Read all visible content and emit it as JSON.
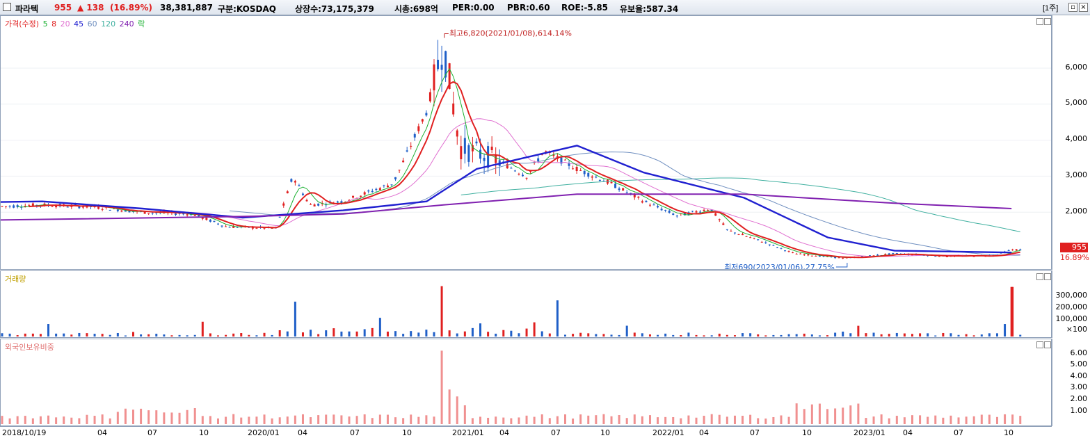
{
  "header": {
    "name": "파라텍",
    "price": "955",
    "change": "▲ 138",
    "change_pct": "(16.89%)",
    "volume": "38,381,887",
    "market": "구분:KOSDAQ",
    "shares": "상장수:73,175,379",
    "mcap": "시총:698억",
    "per": "PER:0.00",
    "pbr": "PBR:0.60",
    "roe": "ROE:-5.85",
    "float": "유보율:587.34",
    "period_button": "[1주]",
    "restore_icon": "restore-window-icon",
    "close_icon": "close-window-icon"
  },
  "colors": {
    "up": "#e02020",
    "down": "#1f5fc8",
    "ma5": "#19b030",
    "ma8": "#e02020",
    "ma20": "#e070d0",
    "ma45": "#2020d0",
    "ma60": "#6f8fc0",
    "ma120": "#40b0a0",
    "ma240": "#8020b0",
    "foreign": "#f09090"
  },
  "price_panel": {
    "legend_label": "가격(수정)",
    "ma_labels": [
      "5",
      "8",
      "20",
      "45",
      "60",
      "120",
      "240",
      "락"
    ],
    "high_annotation": "최고6,820(2021/01/08),614.14%",
    "low_annotation": "최저690(2023/01/06),27.75%",
    "y_ticks": [
      "6,000",
      "5,000",
      "4,000",
      "3,000",
      "2,000"
    ],
    "last_price": "955",
    "last_pct": "16.89%"
  },
  "volume_panel": {
    "legend_label": "거래량",
    "y_ticks": [
      "300,000",
      "200,000",
      "100,000",
      "×100"
    ]
  },
  "foreign_panel": {
    "legend_label": "외국인보유비중",
    "y_ticks": [
      "6.00",
      "5.00",
      "4.00",
      "3.00",
      "2.00",
      "1.00"
    ]
  },
  "x_axis": {
    "labels": [
      "2018/10/19",
      "04",
      "07",
      "10",
      "2020/01",
      "04",
      "07",
      "10",
      "2021/01",
      "04",
      "07",
      "10",
      "2022/01",
      "04",
      "07",
      "10",
      "2023/01",
      "04",
      "07",
      "10"
    ]
  },
  "chart_data": {
    "type": "candlestick",
    "interval": "weekly",
    "x_range": [
      "2018/10/19",
      "2023/11"
    ],
    "price_ylim": [
      500,
      7000
    ],
    "volume_ylim": [
      0,
      420000
    ],
    "foreign_ylim": [
      0,
      7
    ],
    "high_point": {
      "date": "2021/01/08",
      "value": 6820
    },
    "low_point": {
      "date": "2023/01/06",
      "value": 690
    },
    "close_path": [
      {
        "date": "2018/10",
        "close": 2150
      },
      {
        "date": "2019/01",
        "close": 2200
      },
      {
        "date": "2019/04",
        "close": 2150
      },
      {
        "date": "2019/07",
        "close": 2000
      },
      {
        "date": "2019/10",
        "close": 1950
      },
      {
        "date": "2019/12",
        "close": 1600
      },
      {
        "date": "2020/03",
        "close": 1550
      },
      {
        "date": "2020/04",
        "close": 3000
      },
      {
        "date": "2020/05",
        "close": 2200
      },
      {
        "date": "2020/07",
        "close": 2300
      },
      {
        "date": "2020/10",
        "close": 2800
      },
      {
        "date": "2020/12",
        "close": 4800
      },
      {
        "date": "2021/01",
        "close": 6700
      },
      {
        "date": "2021/02",
        "close": 3800
      },
      {
        "date": "2021/04",
        "close": 3500
      },
      {
        "date": "2021/06",
        "close": 3000
      },
      {
        "date": "2021/07",
        "close": 3700
      },
      {
        "date": "2021/09",
        "close": 3200
      },
      {
        "date": "2021/11",
        "close": 2800
      },
      {
        "date": "2022/01",
        "close": 2300
      },
      {
        "date": "2022/03",
        "close": 1900
      },
      {
        "date": "2022/05",
        "close": 2100
      },
      {
        "date": "2022/06",
        "close": 1500
      },
      {
        "date": "2022/08",
        "close": 1200
      },
      {
        "date": "2022/10",
        "close": 850
      },
      {
        "date": "2023/01",
        "close": 720
      },
      {
        "date": "2023/04",
        "close": 850
      },
      {
        "date": "2023/07",
        "close": 780
      },
      {
        "date": "2023/10",
        "close": 800
      },
      {
        "date": "2023/11",
        "close": 955
      }
    ],
    "ma45_path": [
      {
        "date": "2018/10",
        "value": 2280
      },
      {
        "date": "2019/01",
        "value": 2300
      },
      {
        "date": "2019/07",
        "value": 2100
      },
      {
        "date": "2020/01",
        "value": 1850
      },
      {
        "date": "2020/07",
        "value": 2050
      },
      {
        "date": "2020/12",
        "value": 2300
      },
      {
        "date": "2021/03",
        "value": 3200
      },
      {
        "date": "2021/09",
        "value": 3850
      },
      {
        "date": "2022/01",
        "value": 3100
      },
      {
        "date": "2022/07",
        "value": 2400
      },
      {
        "date": "2022/12",
        "value": 1300
      },
      {
        "date": "2023/04",
        "value": 930
      },
      {
        "date": "2023/11",
        "value": 880
      }
    ],
    "ma240_path": [
      {
        "date": "2018/10",
        "value": 1780
      },
      {
        "date": "2020/01",
        "value": 1880
      },
      {
        "date": "2020/07",
        "value": 1950
      },
      {
        "date": "2021/01",
        "value": 2200
      },
      {
        "date": "2021/09",
        "value": 2500
      },
      {
        "date": "2022/07",
        "value": 2500
      },
      {
        "date": "2023/04",
        "value": 2250
      },
      {
        "date": "2023/11",
        "value": 2100
      }
    ],
    "volume_spikes": [
      {
        "date": "2020/04",
        "value": 270000
      },
      {
        "date": "2021/01",
        "value": 390000
      },
      {
        "date": "2021/08",
        "value": 280000
      },
      {
        "date": "2023/11",
        "value": 383819
      }
    ],
    "foreign_peak": {
      "date": "2021/01",
      "value": 6.6
    }
  }
}
